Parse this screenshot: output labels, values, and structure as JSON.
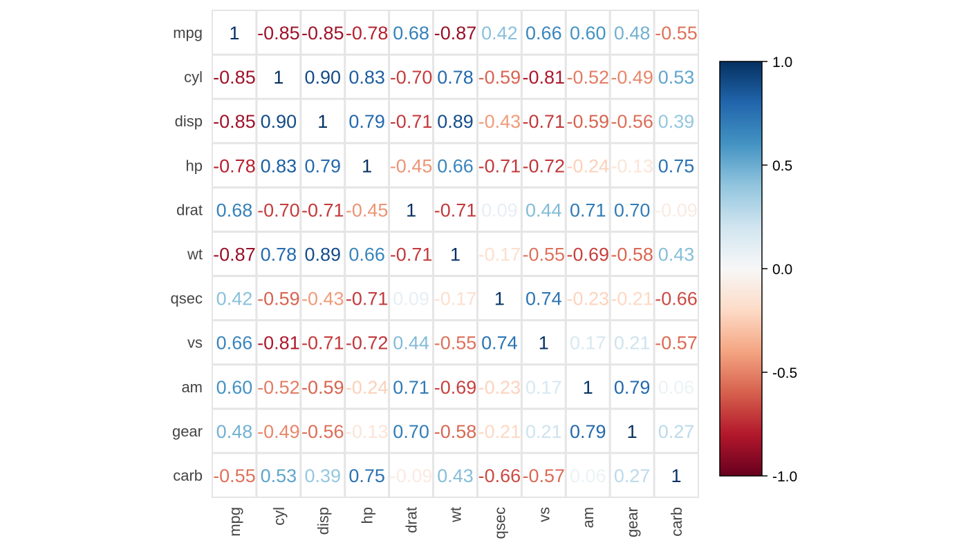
{
  "chart_data": {
    "type": "heatmap",
    "title": "",
    "variables": [
      "mpg",
      "cyl",
      "disp",
      "hp",
      "drat",
      "wt",
      "qsec",
      "vs",
      "am",
      "gear",
      "carb"
    ],
    "cell_labels": [
      [
        "1",
        "-0.85",
        "-0.85",
        "-0.78",
        "0.68",
        "-0.87",
        "0.42",
        "0.66",
        "0.60",
        "0.48",
        "-0.55"
      ],
      [
        "-0.85",
        "1",
        "0.90",
        "0.83",
        "-0.70",
        "0.78",
        "-0.59",
        "-0.81",
        "-0.52",
        "-0.49",
        "0.53"
      ],
      [
        "-0.85",
        "0.90",
        "1",
        "0.79",
        "-0.71",
        "0.89",
        "-0.43",
        "-0.71",
        "-0.59",
        "-0.56",
        "0.39"
      ],
      [
        "-0.78",
        "0.83",
        "0.79",
        "1",
        "-0.45",
        "0.66",
        "-0.71",
        "-0.72",
        "-0.24",
        "-0.13",
        "0.75"
      ],
      [
        "0.68",
        "-0.70",
        "-0.71",
        "-0.45",
        "1",
        "-0.71",
        "0.09",
        "0.44",
        "0.71",
        "0.70",
        "-0.09"
      ],
      [
        "-0.87",
        "0.78",
        "0.89",
        "0.66",
        "-0.71",
        "1",
        "-0.17",
        "-0.55",
        "-0.69",
        "-0.58",
        "0.43"
      ],
      [
        "0.42",
        "-0.59",
        "-0.43",
        "-0.71",
        "0.09",
        "-0.17",
        "1",
        "0.74",
        "-0.23",
        "-0.21",
        "-0.66"
      ],
      [
        "0.66",
        "-0.81",
        "-0.71",
        "-0.72",
        "0.44",
        "-0.55",
        "0.74",
        "1",
        "0.17",
        "0.21",
        "-0.57"
      ],
      [
        "0.60",
        "-0.52",
        "-0.59",
        "-0.24",
        "0.71",
        "-0.69",
        "-0.23",
        "0.17",
        "1",
        "0.79",
        "0.06"
      ],
      [
        "0.48",
        "-0.49",
        "-0.56",
        "-0.13",
        "0.70",
        "-0.58",
        "-0.21",
        "0.21",
        "0.79",
        "1",
        "0.27"
      ],
      [
        "-0.55",
        "0.53",
        "0.39",
        "0.75",
        "-0.09",
        "0.43",
        "-0.66",
        "-0.57",
        "0.06",
        "0.27",
        "1"
      ]
    ],
    "colorbar": {
      "range": [
        -1.0,
        1.0
      ],
      "ticks": [
        "1.0",
        "0.5",
        "0.0",
        "-0.5",
        "-1.0"
      ],
      "tick_values": [
        1.0,
        0.5,
        0.0,
        -0.5,
        -1.0
      ],
      "colors": [
        "#67001F",
        "#B2182B",
        "#D6604D",
        "#F4A582",
        "#FDDBC7",
        "#F7F7F7",
        "#D1E5F0",
        "#92C5DE",
        "#4393C3",
        "#2166AC",
        "#053061"
      ]
    },
    "grid_color": "#E5E5E5",
    "axis_label_color": "#444444",
    "legend_position": "right"
  }
}
